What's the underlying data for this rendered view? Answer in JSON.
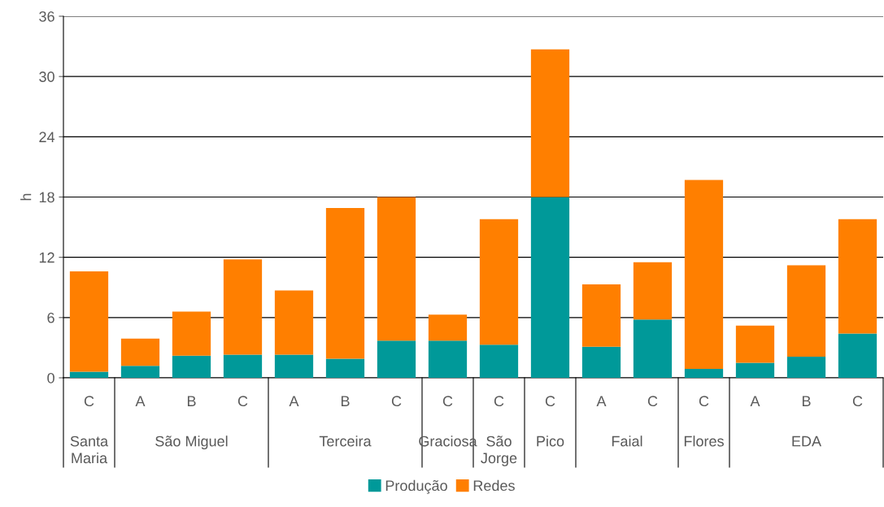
{
  "chart_data": {
    "type": "bar",
    "stacked": true,
    "ylabel": "h",
    "categories": [
      "C",
      "A",
      "B",
      "C",
      "A",
      "B",
      "C",
      "C",
      "C",
      "C",
      "A",
      "C",
      "C",
      "A",
      "B",
      "C"
    ],
    "annotations": [
      "Santa\nMaria",
      "São Miguel",
      "Terceira",
      "Graciosa",
      "São\nJorge",
      "Pico",
      "Faial",
      "Flores",
      "EDA"
    ],
    "series": [
      {
        "name": "Produção",
        "color": "#009999",
        "values": [
          0.6,
          1.2,
          2.2,
          2.3,
          2.3,
          1.9,
          3.7,
          3.7,
          3.3,
          18.0,
          3.1,
          5.8,
          0.9,
          1.5,
          2.1,
          4.4
        ]
      },
      {
        "name": "Redes",
        "color": "#ff7f00",
        "values": [
          10.0,
          2.7,
          4.4,
          9.5,
          6.4,
          15.0,
          14.3,
          2.6,
          12.5,
          14.7,
          6.2,
          5.7,
          18.8,
          3.7,
          9.1,
          11.4
        ]
      }
    ],
    "ylim": [
      0,
      36
    ],
    "yticks": [
      0,
      6,
      12,
      18,
      24,
      30,
      36
    ],
    "grid": "y",
    "legend": "bottom"
  }
}
